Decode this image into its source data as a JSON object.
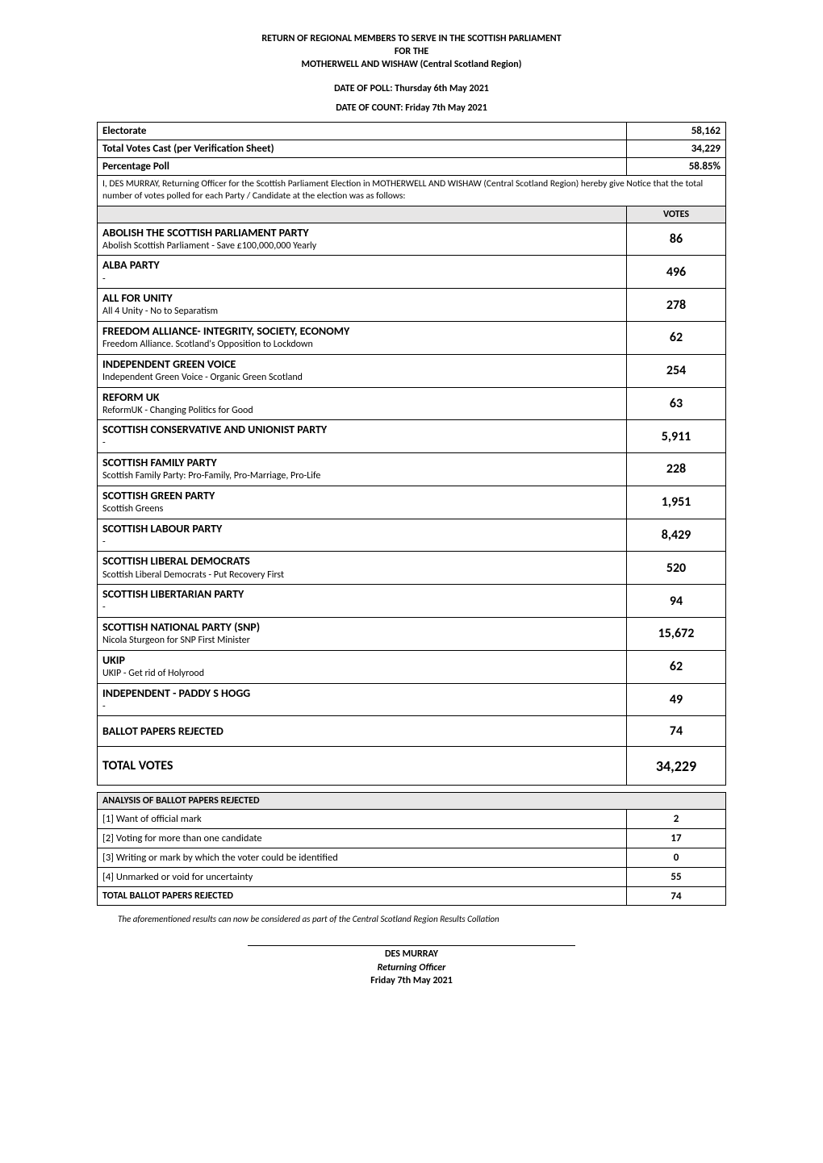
{
  "header": {
    "line1": "RETURN OF REGIONAL MEMBERS TO SERVE IN THE SCOTTISH PARLIAMENT",
    "line2": "FOR THE",
    "line3": "MOTHERWELL AND WISHAW (Central Scotland Region)",
    "poll_date": "DATE OF POLL: Thursday 6th May 2021",
    "count_date": "DATE OF COUNT: Friday 7th May 2021"
  },
  "meta": {
    "electorate_label": "Electorate",
    "electorate_value": "58,162",
    "total_votes_label": "Total Votes Cast (per Verification Sheet)",
    "total_votes_value": "34,229",
    "percentage_label": "Percentage Poll",
    "percentage_value": "58.85%"
  },
  "certification": "I, DES MURRAY, Returning Officer for the Scottish Parliament Election in MOTHERWELL AND WISHAW (Central Scotland Region) hereby give Notice that the total number of votes polled for each Party / Candidate at the election was as follows:",
  "votes_header": "VOTES",
  "parties": [
    {
      "name": "ABOLISH THE SCOTTISH PARLIAMENT PARTY",
      "desc": "Abolish Scottish Parliament - Save £100,000,000 Yearly",
      "votes": "86"
    },
    {
      "name": "ALBA PARTY",
      "desc": "-",
      "votes": "496"
    },
    {
      "name": "ALL FOR UNITY",
      "desc": "All 4 Unity - No to Separatism",
      "votes": "278"
    },
    {
      "name": "FREEDOM ALLIANCE- INTEGRITY, SOCIETY, ECONOMY",
      "desc": "Freedom Alliance. Scotland's Opposition to Lockdown",
      "votes": "62"
    },
    {
      "name": "INDEPENDENT GREEN VOICE",
      "desc": "Independent Green Voice - Organic Green Scotland",
      "votes": "254"
    },
    {
      "name": "REFORM UK",
      "desc": "ReformUK - Changing Politics for Good",
      "votes": "63"
    },
    {
      "name": "SCOTTISH CONSERVATIVE AND UNIONIST PARTY",
      "desc": "-",
      "votes": "5,911"
    },
    {
      "name": "SCOTTISH FAMILY PARTY",
      "desc": "Scottish Family Party: Pro-Family, Pro-Marriage, Pro-Life",
      "votes": "228"
    },
    {
      "name": "SCOTTISH GREEN PARTY",
      "desc": "Scottish Greens",
      "votes": "1,951"
    },
    {
      "name": "SCOTTISH LABOUR PARTY",
      "desc": "-",
      "votes": "8,429"
    },
    {
      "name": "SCOTTISH LIBERAL DEMOCRATS",
      "desc": "Scottish Liberal Democrats - Put Recovery First",
      "votes": "520"
    },
    {
      "name": "SCOTTISH LIBERTARIAN PARTY",
      "desc": "-",
      "votes": "94"
    },
    {
      "name": "SCOTTISH NATIONAL PARTY (SNP)",
      "desc": "Nicola Sturgeon for SNP First Minister",
      "votes": "15,672"
    },
    {
      "name": "UKIP",
      "desc": "UKIP - Get rid of Holyrood",
      "votes": "62"
    },
    {
      "name": "INDEPENDENT - PADDY S HOGG",
      "desc": "-",
      "votes": "49"
    }
  ],
  "rejected": {
    "label": "BALLOT PAPERS REJECTED",
    "value": "74"
  },
  "total": {
    "label": "TOTAL VOTES",
    "value": "34,229"
  },
  "analysis": {
    "header": "ANALYSIS OF BALLOT PAPERS REJECTED",
    "rows": [
      {
        "label": "[1]  Want of official mark",
        "value": "2"
      },
      {
        "label": "[2]  Voting for more than one candidate",
        "value": "17"
      },
      {
        "label": "[3]  Writing or mark by which the voter could be identified",
        "value": "0"
      },
      {
        "label": "[4]  Unmarked or void for uncertainty",
        "value": "55"
      }
    ],
    "total_label": "TOTAL BALLOT PAPERS REJECTED",
    "total_value": "74"
  },
  "footnote": "The aforementioned results can now be considered as part of the Central Scotland Region Results Collation",
  "signature": {
    "name": "DES MURRAY",
    "role": "Returning Officer",
    "date": "Friday 7th May 2021"
  },
  "style": {
    "bg_accent": "#e7e6e6",
    "border": "#000000",
    "vote_fontsize": 16,
    "party_name_fontsize": 14
  }
}
